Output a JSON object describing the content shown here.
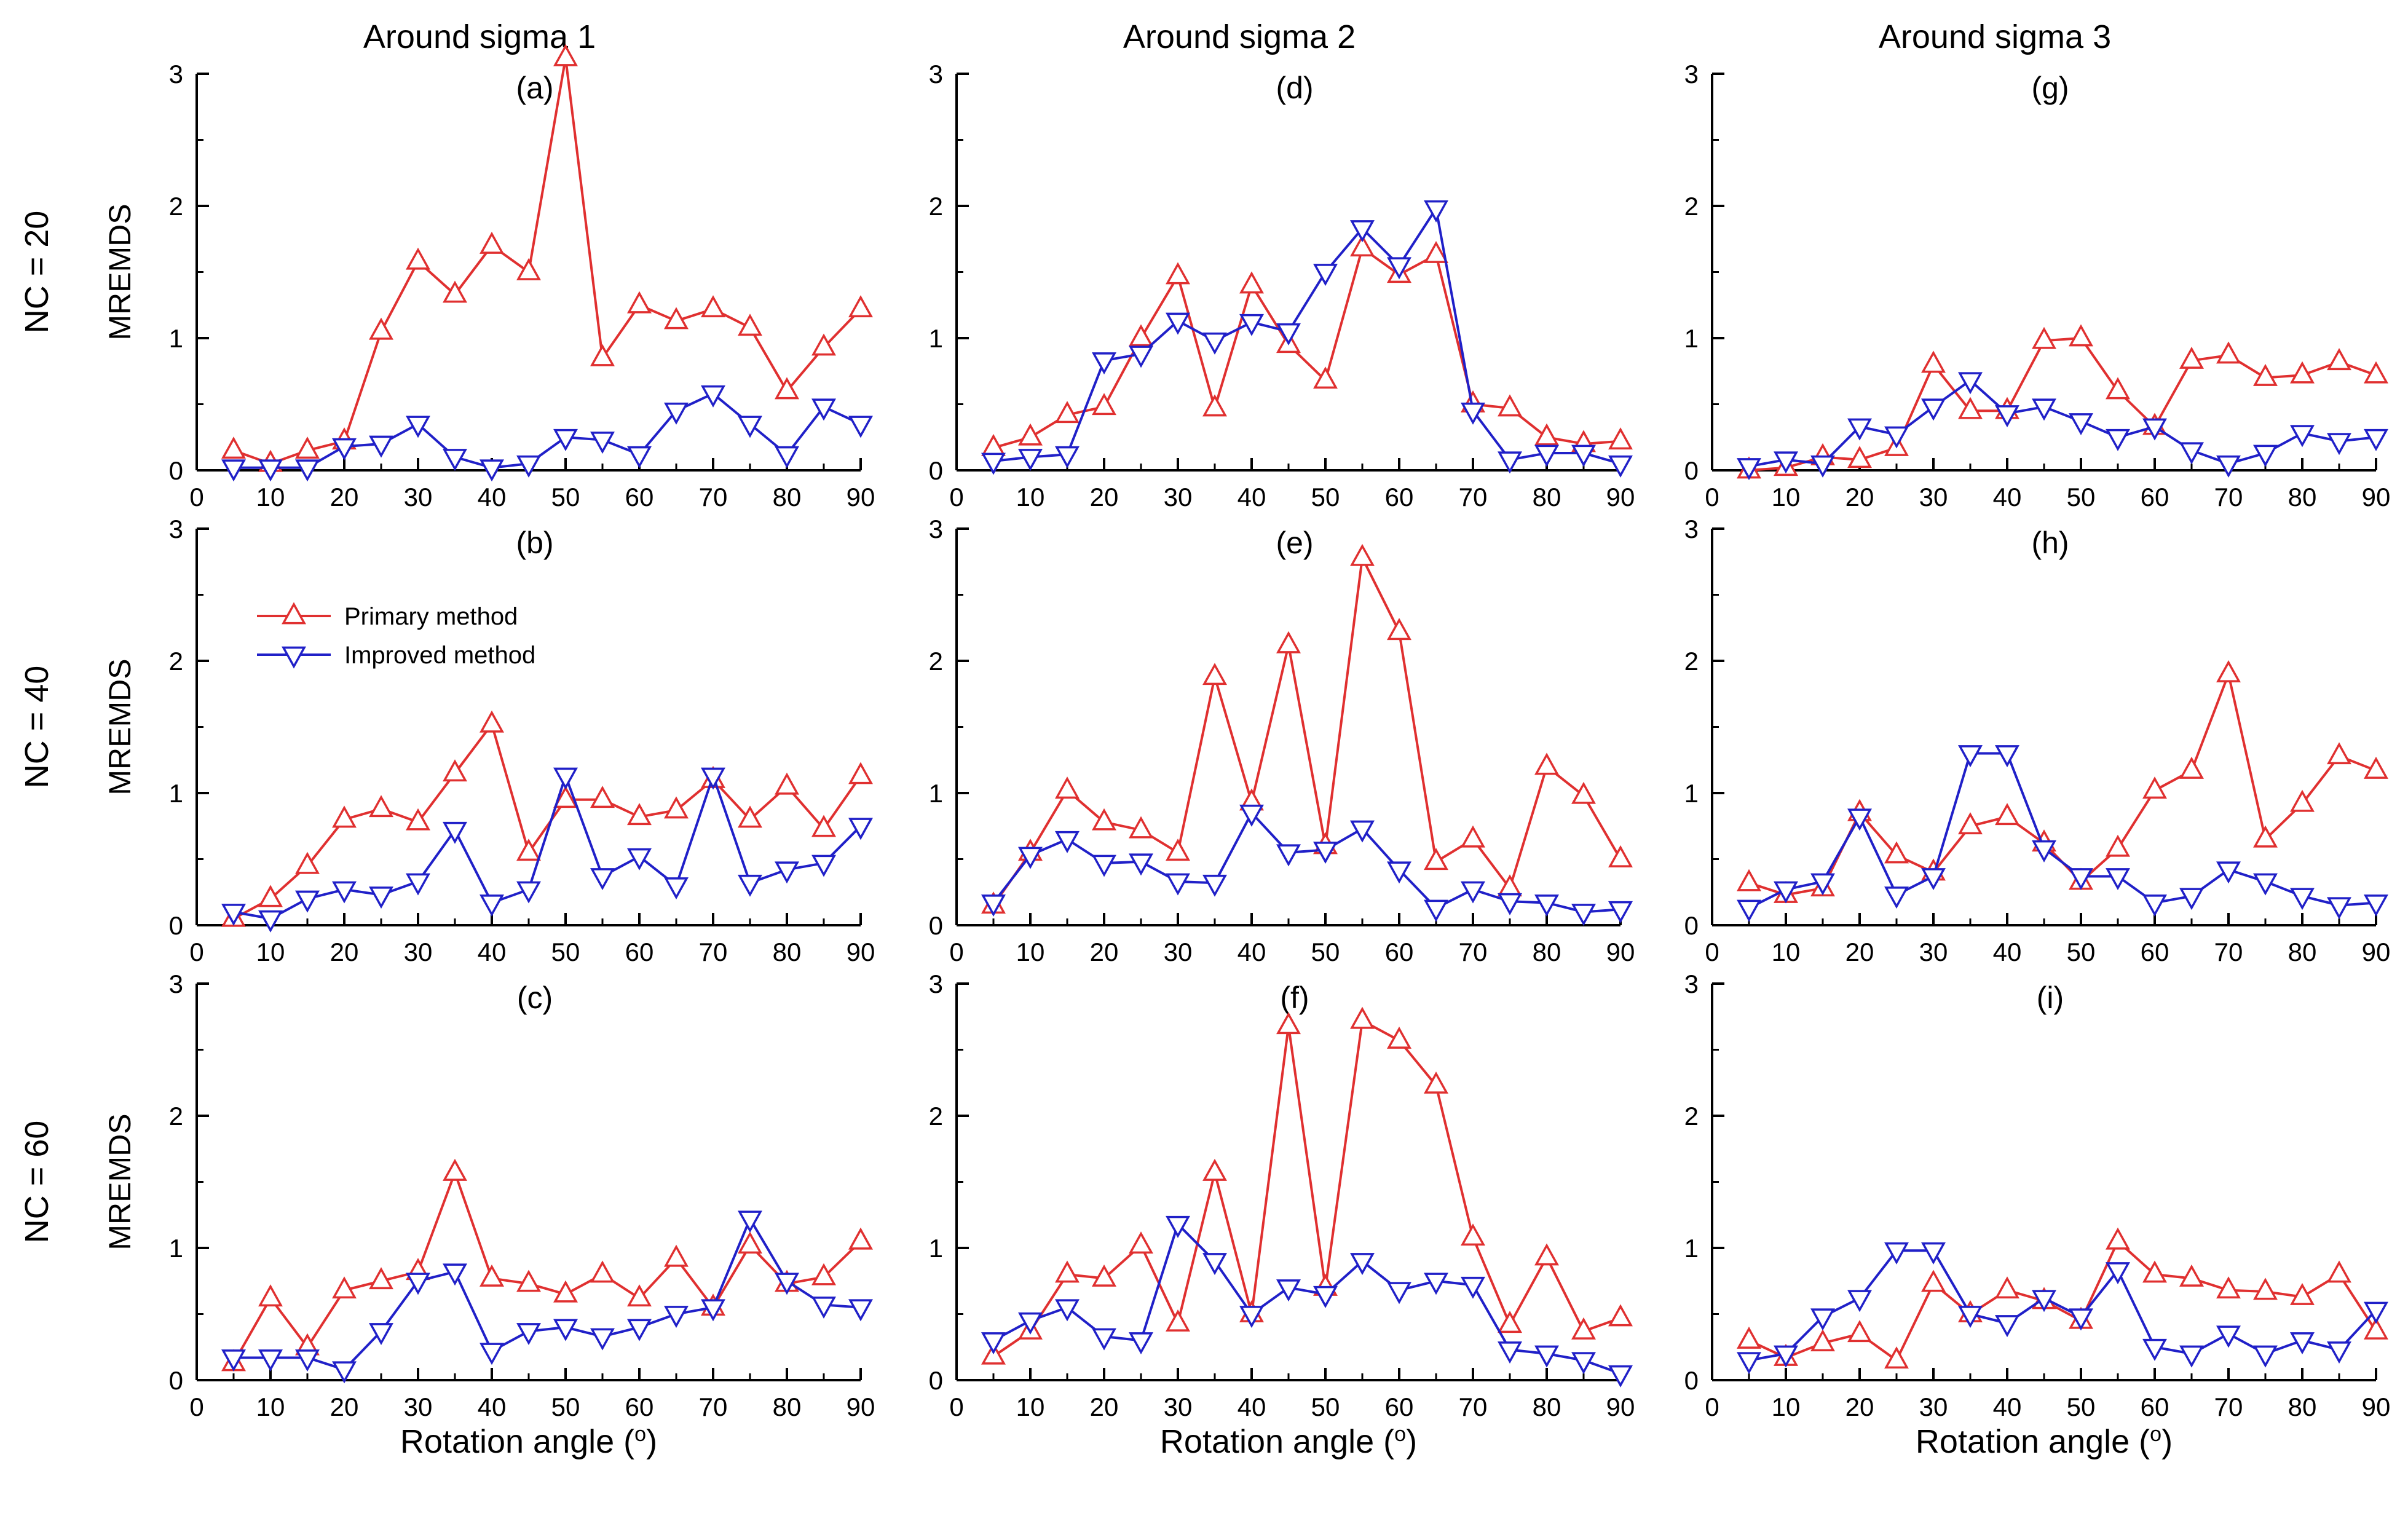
{
  "figure": {
    "col_titles": [
      "Around sigma 1",
      "Around sigma 2",
      "Around sigma 3"
    ],
    "row_titles": [
      "NC = 20",
      "NC = 40",
      "NC = 60"
    ],
    "ylabel": "MREMDS",
    "xlabel": "Rotation angle (o)",
    "xlabel_main": "Rotation angle (",
    "xlabel_sup": "o",
    "xlabel_close": ")",
    "legend": {
      "primary": "Primary method",
      "improved": "Improved method"
    },
    "colors": {
      "primary": "#e03030",
      "improved": "#2020c8"
    }
  },
  "chart_data": [
    {
      "type": "line",
      "panel": "(a)",
      "col_title": "Around sigma 1",
      "row_title": "NC = 20",
      "xlim": [
        0,
        90
      ],
      "ylim": [
        0,
        3
      ],
      "xticks": [
        0,
        10,
        20,
        30,
        40,
        50,
        60,
        70,
        80,
        90
      ],
      "yticks": [
        0,
        1,
        2,
        3
      ],
      "x": [
        5,
        10,
        15,
        20,
        25,
        30,
        35,
        40,
        45,
        50,
        55,
        60,
        65,
        70,
        75,
        80,
        85,
        90
      ],
      "series": [
        {
          "name": "Primary method",
          "values": [
            0.15,
            0.05,
            0.15,
            0.22,
            1.05,
            1.58,
            1.33,
            1.7,
            1.5,
            3.12,
            0.85,
            1.25,
            1.13,
            1.22,
            1.08,
            0.6,
            0.93,
            1.22
          ]
        },
        {
          "name": "Improved method",
          "values": [
            0.02,
            0.02,
            0.02,
            0.18,
            0.2,
            0.35,
            0.1,
            0.02,
            0.05,
            0.25,
            0.23,
            0.12,
            0.45,
            0.58,
            0.35,
            0.12,
            0.48,
            0.35
          ]
        }
      ]
    },
    {
      "type": "line",
      "panel": "(b)",
      "col_title": "Around sigma 1",
      "row_title": "NC = 40",
      "xlim": [
        0,
        90
      ],
      "ylim": [
        0,
        3
      ],
      "xticks": [
        0,
        10,
        20,
        30,
        40,
        50,
        60,
        70,
        80,
        90
      ],
      "yticks": [
        0,
        1,
        2,
        3
      ],
      "x": [
        5,
        10,
        15,
        20,
        25,
        30,
        35,
        40,
        45,
        50,
        55,
        60,
        65,
        70,
        75,
        80,
        85,
        90
      ],
      "series": [
        {
          "name": "Primary method",
          "values": [
            0.05,
            0.2,
            0.45,
            0.8,
            0.88,
            0.78,
            1.15,
            1.52,
            0.55,
            0.95,
            0.95,
            0.82,
            0.87,
            1.1,
            0.8,
            1.05,
            0.73,
            1.13
          ]
        },
        {
          "name": "Improved method",
          "values": [
            0.1,
            0.05,
            0.2,
            0.27,
            0.23,
            0.33,
            0.72,
            0.17,
            0.27,
            1.13,
            0.37,
            0.52,
            0.3,
            1.13,
            0.32,
            0.42,
            0.47,
            0.75
          ]
        }
      ]
    },
    {
      "type": "line",
      "panel": "(c)",
      "col_title": "Around sigma 1",
      "row_title": "NC = 60",
      "xlim": [
        0,
        90
      ],
      "ylim": [
        0,
        3
      ],
      "xticks": [
        0,
        10,
        20,
        30,
        40,
        50,
        60,
        70,
        80,
        90
      ],
      "yticks": [
        0,
        1,
        2,
        3
      ],
      "x": [
        5,
        10,
        15,
        20,
        25,
        30,
        35,
        40,
        45,
        50,
        55,
        60,
        65,
        70,
        75,
        80,
        85,
        90
      ],
      "series": [
        {
          "name": "Primary method",
          "values": [
            0.13,
            0.62,
            0.25,
            0.68,
            0.75,
            0.82,
            1.57,
            0.77,
            0.73,
            0.65,
            0.8,
            0.62,
            0.92,
            0.55,
            1.02,
            0.73,
            0.78,
            1.05
          ]
        },
        {
          "name": "Improved method",
          "values": [
            0.17,
            0.17,
            0.17,
            0.08,
            0.37,
            0.75,
            0.82,
            0.22,
            0.37,
            0.4,
            0.33,
            0.4,
            0.5,
            0.55,
            1.22,
            0.75,
            0.57,
            0.55
          ]
        }
      ]
    },
    {
      "type": "line",
      "panel": "(d)",
      "col_title": "Around sigma 2",
      "row_title": "NC = 20",
      "xlim": [
        0,
        90
      ],
      "ylim": [
        0,
        3
      ],
      "xticks": [
        0,
        10,
        20,
        30,
        40,
        50,
        60,
        70,
        80,
        90
      ],
      "yticks": [
        0,
        1,
        2,
        3
      ],
      "x": [
        5,
        10,
        15,
        20,
        25,
        30,
        35,
        40,
        45,
        50,
        55,
        60,
        65,
        70,
        75,
        80,
        85,
        90
      ],
      "series": [
        {
          "name": "Primary method",
          "values": [
            0.17,
            0.25,
            0.42,
            0.48,
            1.0,
            1.47,
            0.47,
            1.4,
            0.95,
            0.68,
            1.68,
            1.48,
            1.63,
            0.5,
            0.47,
            0.25,
            0.2,
            0.22
          ]
        },
        {
          "name": "Improved method",
          "values": [
            0.07,
            0.1,
            0.12,
            0.83,
            0.88,
            1.13,
            0.98,
            1.12,
            1.05,
            1.5,
            1.83,
            1.55,
            1.98,
            0.45,
            0.08,
            0.13,
            0.13,
            0.05
          ]
        }
      ]
    },
    {
      "type": "line",
      "panel": "(e)",
      "col_title": "Around sigma 2",
      "row_title": "NC = 40",
      "xlim": [
        0,
        90
      ],
      "ylim": [
        0,
        3
      ],
      "xticks": [
        0,
        10,
        20,
        30,
        40,
        50,
        60,
        70,
        80,
        90
      ],
      "yticks": [
        0,
        1,
        2,
        3
      ],
      "x": [
        5,
        10,
        15,
        20,
        25,
        30,
        35,
        40,
        45,
        50,
        55,
        60,
        65,
        70,
        75,
        80,
        85,
        90
      ],
      "series": [
        {
          "name": "Primary method",
          "values": [
            0.15,
            0.55,
            1.02,
            0.78,
            0.72,
            0.55,
            1.88,
            0.93,
            2.12,
            0.6,
            2.78,
            2.22,
            0.48,
            0.65,
            0.28,
            1.2,
            0.98,
            0.5
          ]
        },
        {
          "name": "Improved method",
          "values": [
            0.17,
            0.53,
            0.65,
            0.47,
            0.48,
            0.33,
            0.32,
            0.85,
            0.55,
            0.57,
            0.73,
            0.42,
            0.13,
            0.27,
            0.18,
            0.17,
            0.1,
            0.12
          ]
        }
      ]
    },
    {
      "type": "line",
      "panel": "(f)",
      "col_title": "Around sigma 2",
      "row_title": "NC = 60",
      "xlim": [
        0,
        90
      ],
      "ylim": [
        0,
        3
      ],
      "xticks": [
        0,
        10,
        20,
        30,
        40,
        50,
        60,
        70,
        80,
        90
      ],
      "yticks": [
        0,
        1,
        2,
        3
      ],
      "x": [
        5,
        10,
        15,
        20,
        25,
        30,
        35,
        40,
        45,
        50,
        55,
        60,
        65,
        70,
        75,
        80,
        85,
        90
      ],
      "series": [
        {
          "name": "Primary method",
          "values": [
            0.18,
            0.37,
            0.8,
            0.77,
            1.02,
            0.43,
            1.57,
            0.5,
            2.68,
            0.7,
            2.72,
            2.57,
            2.23,
            1.08,
            0.42,
            0.93,
            0.37,
            0.47
          ]
        },
        {
          "name": "Improved method",
          "values": [
            0.3,
            0.45,
            0.55,
            0.33,
            0.3,
            1.18,
            0.9,
            0.5,
            0.7,
            0.65,
            0.9,
            0.68,
            0.75,
            0.72,
            0.23,
            0.2,
            0.15,
            0.05
          ]
        }
      ]
    },
    {
      "type": "line",
      "panel": "(g)",
      "col_title": "Around sigma 3",
      "row_title": "NC = 20",
      "xlim": [
        0,
        90
      ],
      "ylim": [
        0,
        3
      ],
      "xticks": [
        0,
        10,
        20,
        30,
        40,
        50,
        60,
        70,
        80,
        90
      ],
      "yticks": [
        0,
        1,
        2,
        3
      ],
      "x": [
        5,
        10,
        15,
        20,
        25,
        30,
        35,
        40,
        45,
        50,
        55,
        60,
        65,
        70,
        75,
        80,
        85,
        90
      ],
      "series": [
        {
          "name": "Primary method",
          "values": [
            0.0,
            0.02,
            0.1,
            0.08,
            0.17,
            0.8,
            0.45,
            0.45,
            0.98,
            1.0,
            0.6,
            0.33,
            0.83,
            0.87,
            0.7,
            0.72,
            0.82,
            0.72
          ]
        },
        {
          "name": "Improved method",
          "values": [
            0.03,
            0.08,
            0.05,
            0.33,
            0.27,
            0.48,
            0.68,
            0.43,
            0.48,
            0.37,
            0.25,
            0.33,
            0.15,
            0.05,
            0.13,
            0.28,
            0.22,
            0.25
          ]
        }
      ]
    },
    {
      "type": "line",
      "panel": "(h)",
      "col_title": "Around sigma 3",
      "row_title": "NC = 40",
      "xlim": [
        0,
        90
      ],
      "ylim": [
        0,
        3
      ],
      "xticks": [
        0,
        10,
        20,
        30,
        40,
        50,
        60,
        70,
        80,
        90
      ],
      "yticks": [
        0,
        1,
        2,
        3
      ],
      "x": [
        5,
        10,
        15,
        20,
        25,
        30,
        35,
        40,
        45,
        50,
        55,
        60,
        65,
        70,
        75,
        80,
        85,
        90
      ],
      "series": [
        {
          "name": "Primary method",
          "values": [
            0.32,
            0.23,
            0.28,
            0.85,
            0.53,
            0.4,
            0.75,
            0.82,
            0.62,
            0.33,
            0.58,
            1.02,
            1.17,
            1.9,
            0.65,
            0.92,
            1.28,
            1.17
          ]
        },
        {
          "name": "Improved method",
          "values": [
            0.13,
            0.27,
            0.33,
            0.82,
            0.23,
            0.37,
            1.3,
            1.3,
            0.58,
            0.37,
            0.37,
            0.17,
            0.22,
            0.42,
            0.33,
            0.22,
            0.15,
            0.17
          ]
        }
      ]
    },
    {
      "type": "line",
      "panel": "(i)",
      "col_title": "Around sigma 3",
      "row_title": "NC = 60",
      "xlim": [
        0,
        90
      ],
      "ylim": [
        0,
        3
      ],
      "xticks": [
        0,
        10,
        20,
        30,
        40,
        50,
        60,
        70,
        80,
        90
      ],
      "yticks": [
        0,
        1,
        2,
        3
      ],
      "x": [
        5,
        10,
        15,
        20,
        25,
        30,
        35,
        40,
        45,
        50,
        55,
        60,
        65,
        70,
        75,
        80,
        85,
        90
      ],
      "series": [
        {
          "name": "Primary method",
          "values": [
            0.3,
            0.17,
            0.28,
            0.35,
            0.15,
            0.73,
            0.5,
            0.68,
            0.6,
            0.45,
            1.05,
            0.8,
            0.77,
            0.68,
            0.67,
            0.63,
            0.8,
            0.37
          ]
        },
        {
          "name": "Improved method",
          "values": [
            0.15,
            0.2,
            0.48,
            0.62,
            0.98,
            0.98,
            0.5,
            0.43,
            0.62,
            0.48,
            0.83,
            0.25,
            0.2,
            0.35,
            0.2,
            0.3,
            0.23,
            0.53
          ]
        }
      ]
    }
  ]
}
